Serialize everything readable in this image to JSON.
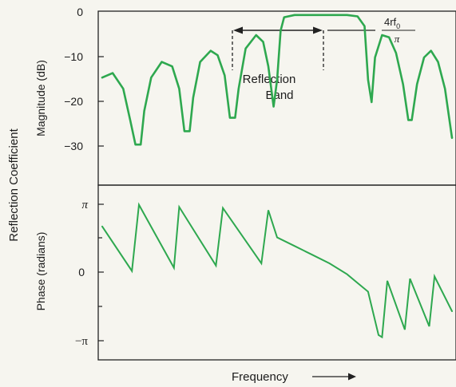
{
  "chart_data": {
    "type": "line",
    "super_ylabel": "Reflection Coefficient",
    "xlabel": "Frequency",
    "magnitude": {
      "ylabel": "Magnitude (dB)",
      "yticks": [
        "0",
        "−10",
        "−20",
        "−30"
      ],
      "ylim": [
        -40,
        0
      ],
      "band_label_line1": "Reflection",
      "band_label_line2": "Band",
      "width_num": "4rf",
      "width_sub": "0",
      "width_den": "π",
      "series": [
        {
          "points": [
            [
              0.0,
              -14.5
            ],
            [
              0.03,
              -13.5
            ],
            [
              0.06,
              -17
            ],
            [
              0.08,
              -24
            ],
            [
              0.095,
              -29.5
            ],
            [
              0.11,
              -29.5
            ],
            [
              0.12,
              -22
            ],
            [
              0.14,
              -14.5
            ],
            [
              0.17,
              -11
            ],
            [
              0.2,
              -12
            ],
            [
              0.22,
              -17
            ],
            [
              0.235,
              -26.5
            ],
            [
              0.25,
              -26.5
            ],
            [
              0.26,
              -19
            ],
            [
              0.28,
              -11
            ],
            [
              0.31,
              -8.5
            ],
            [
              0.33,
              -9.5
            ],
            [
              0.35,
              -14
            ],
            [
              0.365,
              -23.5
            ],
            [
              0.38,
              -23.5
            ],
            [
              0.39,
              -17
            ],
            [
              0.41,
              -8
            ],
            [
              0.44,
              -5
            ],
            [
              0.46,
              -6.5
            ],
            [
              0.475,
              -12
            ],
            [
              0.49,
              -21
            ],
            [
              0.5,
              -15
            ],
            [
              0.51,
              -4
            ],
            [
              0.52,
              -1
            ],
            [
              0.55,
              -0.5
            ],
            [
              0.6,
              -0.5
            ],
            [
              0.65,
              -0.5
            ],
            [
              0.7,
              -0.5
            ],
            [
              0.73,
              -0.8
            ],
            [
              0.75,
              -3
            ],
            [
              0.76,
              -15
            ],
            [
              0.77,
              -20
            ],
            [
              0.78,
              -10
            ],
            [
              0.8,
              -5
            ],
            [
              0.82,
              -5.5
            ],
            [
              0.84,
              -9
            ],
            [
              0.86,
              -16
            ],
            [
              0.875,
              -24
            ],
            [
              0.885,
              -24
            ],
            [
              0.9,
              -16
            ],
            [
              0.92,
              -10
            ],
            [
              0.94,
              -8.5
            ],
            [
              0.96,
              -11
            ],
            [
              0.98,
              -17
            ],
            [
              1.0,
              -28
            ]
          ]
        }
      ]
    },
    "phase": {
      "ylabel": "Phase (radians)",
      "yticks": [
        "π",
        "0",
        "−π"
      ],
      "ylim": [
        -3.8,
        3.8
      ],
      "series": [
        {
          "points": [
            [
              0.0,
              2.1
            ],
            [
              0.085,
              0.05
            ],
            [
              0.105,
              3.1
            ],
            [
              0.205,
              0.2
            ],
            [
              0.22,
              3.0
            ],
            [
              0.325,
              0.3
            ],
            [
              0.345,
              2.95
            ],
            [
              0.455,
              0.4
            ],
            [
              0.475,
              2.85
            ],
            [
              0.5,
              1.6
            ],
            [
              0.55,
              1.2
            ],
            [
              0.6,
              0.8
            ],
            [
              0.65,
              0.4
            ],
            [
              0.7,
              -0.1
            ],
            [
              0.73,
              -0.5
            ],
            [
              0.76,
              -0.9
            ],
            [
              0.79,
              -2.9
            ],
            [
              0.8,
              -3.0
            ],
            [
              0.815,
              -0.4
            ],
            [
              0.865,
              -2.65
            ],
            [
              0.88,
              -0.3
            ],
            [
              0.935,
              -2.5
            ],
            [
              0.95,
              -0.2
            ],
            [
              1.0,
              -1.8
            ]
          ]
        }
      ]
    }
  }
}
